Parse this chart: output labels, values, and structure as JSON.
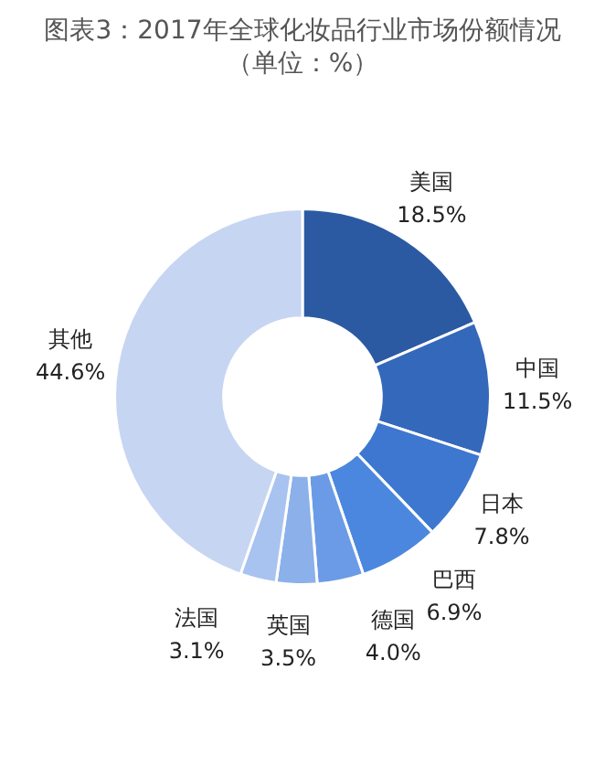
{
  "chart_data": {
    "type": "donut",
    "title": "图表3：2017年全球化妆品行业市场份额情况（单位：%）",
    "categories": [
      "美国",
      "中国",
      "日本",
      "巴西",
      "德国",
      "英国",
      "法国",
      "其他"
    ],
    "values": [
      18.5,
      11.5,
      7.8,
      6.9,
      4.0,
      3.5,
      3.1,
      44.6
    ],
    "colors": [
      "#2b5aa3",
      "#3468bb",
      "#3d77cf",
      "#4b87de",
      "#6b9be6",
      "#8bb0ea",
      "#a8c3ef",
      "#c6d5f2"
    ],
    "value_labels": [
      "18.5%",
      "11.5%",
      "7.8%",
      "6.9%",
      "4.0%",
      "3.5%",
      "3.1%",
      "44.6%"
    ],
    "legend": false
  }
}
